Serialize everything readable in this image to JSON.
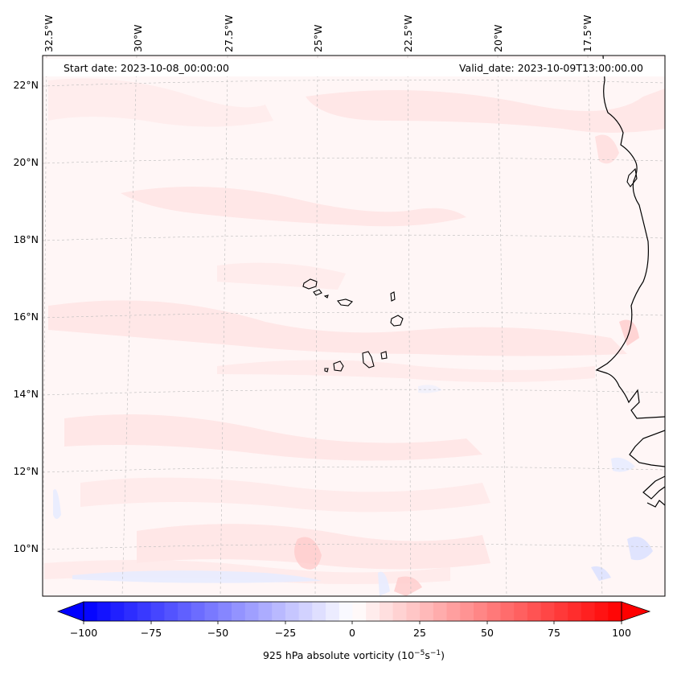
{
  "header": {
    "start_date": "Start date: 2023-10-08_00:00:00",
    "valid_date": "Valid_date: 2023-10-09T13:00:00.00"
  },
  "map": {
    "longitude_labels": [
      "32.5°W",
      "30°W",
      "27.5°W",
      "25°W",
      "22.5°W",
      "20°W",
      "17.5°W"
    ],
    "latitude_labels": [
      "22°N",
      "20°N",
      "18°N",
      "16°N",
      "14°N",
      "12°N",
      "10°N"
    ],
    "field": "925 hPa absolute vorticity",
    "background_color": "#fff5f5",
    "positive_color": "#ff0000",
    "negative_color": "#0000ff",
    "coastline_color": "#000000"
  },
  "colorbar": {
    "label_text": "925 hPa absolute vorticity (10",
    "label_exp1": "−5",
    "label_mid": "s",
    "label_exp2": "−1",
    "label_close": ")",
    "ticks": [
      "−100",
      "−75",
      "−50",
      "−25",
      "0",
      "25",
      "50",
      "75",
      "100"
    ],
    "range": [
      -100,
      100
    ],
    "levels": 41
  }
}
